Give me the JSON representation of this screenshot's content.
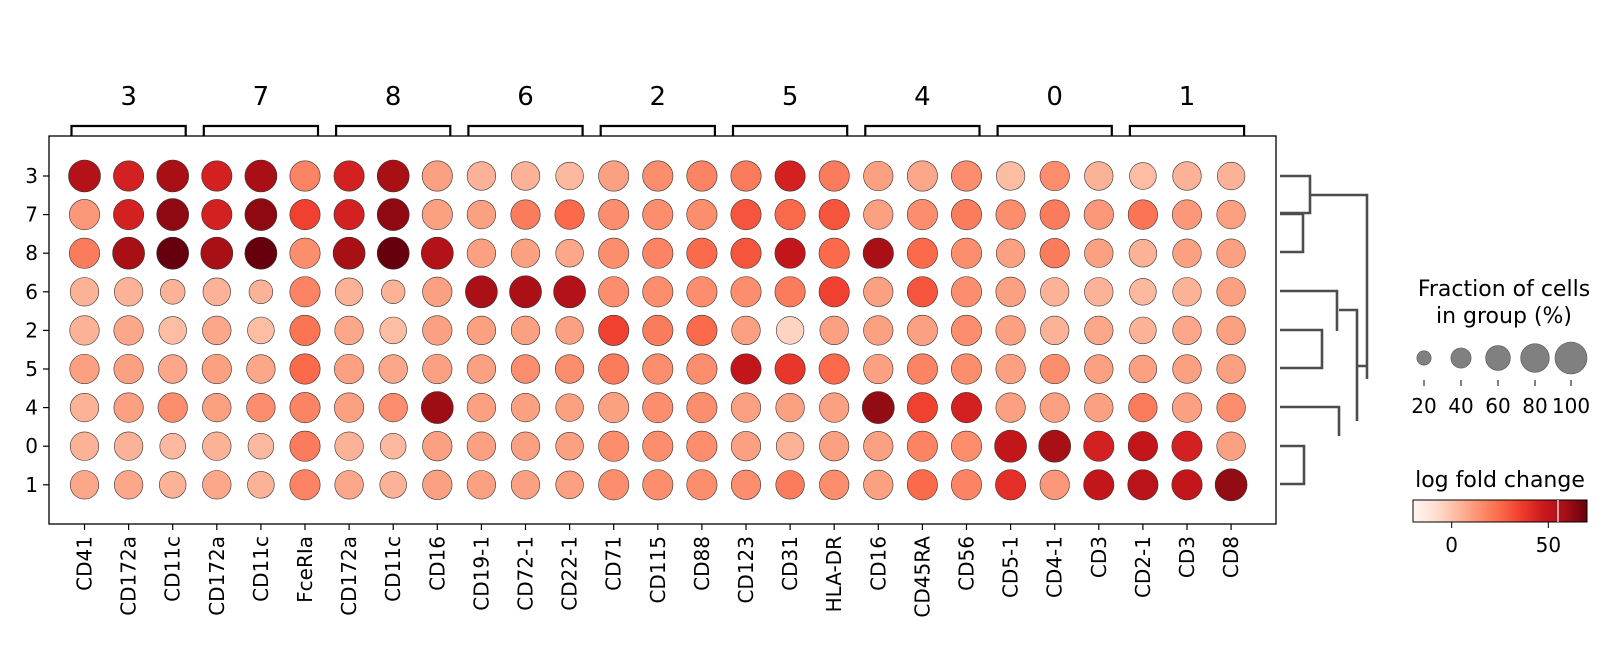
{
  "chart_data": {
    "type": "dotplot",
    "title": "",
    "rows": [
      "3",
      "7",
      "8",
      "6",
      "2",
      "5",
      "4",
      "0",
      "1"
    ],
    "genes": [
      "CD41",
      "CD172a",
      "CD11c",
      "CD172a",
      "CD11c",
      "FceRIa",
      "CD172a",
      "CD11c",
      "CD16",
      "CD19-1",
      "CD72-1",
      "CD22-1",
      "CD71",
      "CD115",
      "CD88",
      "CD123",
      "CD31",
      "HLA-DR",
      "CD16",
      "CD45RA",
      "CD56",
      "CD5-1",
      "CD4-1",
      "CD3",
      "CD2-1",
      "CD3",
      "CD8"
    ],
    "groups": [
      {
        "label": "3",
        "start": 0,
        "end": 2
      },
      {
        "label": "7",
        "start": 3,
        "end": 5
      },
      {
        "label": "8",
        "start": 6,
        "end": 8
      },
      {
        "label": "6",
        "start": 9,
        "end": 11
      },
      {
        "label": "2",
        "start": 12,
        "end": 14
      },
      {
        "label": "5",
        "start": 15,
        "end": 17
      },
      {
        "label": "4",
        "start": 18,
        "end": 20
      },
      {
        "label": "0",
        "start": 21,
        "end": 23
      },
      {
        "label": "1",
        "start": 24,
        "end": 26
      }
    ],
    "fraction_pct": [
      [
        100,
        90,
        100,
        90,
        100,
        90,
        90,
        100,
        90,
        80,
        80,
        75,
        90,
        90,
        90,
        90,
        90,
        90,
        85,
        90,
        90,
        80,
        85,
        80,
        70,
        80,
        75
      ],
      [
        90,
        90,
        100,
        90,
        100,
        90,
        90,
        100,
        90,
        80,
        85,
        85,
        90,
        90,
        90,
        90,
        90,
        90,
        85,
        90,
        90,
        85,
        85,
        85,
        85,
        85,
        80
      ],
      [
        90,
        100,
        100,
        100,
        100,
        90,
        100,
        100,
        100,
        80,
        80,
        75,
        90,
        90,
        90,
        90,
        90,
        90,
        90,
        90,
        90,
        80,
        85,
        80,
        75,
        80,
        80
      ],
      [
        80,
        80,
        60,
        75,
        55,
        90,
        75,
        55,
        85,
        100,
        100,
        100,
        90,
        90,
        90,
        90,
        90,
        90,
        85,
        90,
        90,
        85,
        80,
        80,
        70,
        80,
        80
      ],
      [
        85,
        85,
        75,
        80,
        70,
        90,
        80,
        70,
        85,
        80,
        80,
        75,
        90,
        90,
        90,
        80,
        75,
        80,
        85,
        90,
        90,
        85,
        80,
        80,
        70,
        80,
        80
      ],
      [
        85,
        85,
        80,
        85,
        80,
        90,
        85,
        80,
        85,
        80,
        80,
        80,
        90,
        90,
        90,
        90,
        90,
        90,
        85,
        90,
        90,
        85,
        85,
        80,
        75,
        80,
        80
      ],
      [
        80,
        85,
        85,
        80,
        80,
        90,
        85,
        80,
        100,
        80,
        80,
        75,
        90,
        90,
        90,
        85,
        80,
        85,
        100,
        90,
        90,
        85,
        85,
        80,
        80,
        85,
        80
      ],
      [
        80,
        80,
        65,
        80,
        65,
        90,
        80,
        65,
        85,
        80,
        80,
        75,
        90,
        90,
        90,
        85,
        75,
        85,
        85,
        90,
        90,
        100,
        100,
        90,
        85,
        90,
        80
      ],
      [
        80,
        80,
        70,
        80,
        70,
        90,
        80,
        70,
        85,
        80,
        80,
        75,
        90,
        90,
        90,
        85,
        80,
        85,
        85,
        90,
        90,
        90,
        85,
        90,
        90,
        90,
        100
      ]
    ],
    "log_fold_change": [
      [
        55,
        45,
        58,
        45,
        58,
        18,
        45,
        58,
        10,
        5,
        5,
        3,
        10,
        15,
        18,
        20,
        45,
        20,
        10,
        8,
        15,
        2,
        15,
        5,
        2,
        5,
        5
      ],
      [
        12,
        45,
        63,
        45,
        63,
        35,
        45,
        63,
        10,
        10,
        20,
        25,
        15,
        15,
        15,
        30,
        25,
        30,
        10,
        15,
        20,
        15,
        20,
        12,
        22,
        12,
        10
      ],
      [
        20,
        58,
        70,
        58,
        70,
        15,
        58,
        70,
        55,
        10,
        10,
        8,
        15,
        18,
        25,
        30,
        50,
        25,
        58,
        25,
        15,
        10,
        20,
        10,
        5,
        10,
        10
      ],
      [
        5,
        5,
        5,
        5,
        5,
        18,
        5,
        5,
        10,
        57,
        57,
        55,
        15,
        15,
        15,
        15,
        20,
        35,
        10,
        30,
        15,
        10,
        5,
        5,
        3,
        5,
        10
      ],
      [
        5,
        8,
        2,
        8,
        2,
        22,
        8,
        2,
        10,
        10,
        10,
        10,
        35,
        20,
        25,
        10,
        -5,
        10,
        10,
        10,
        15,
        10,
        5,
        8,
        5,
        8,
        10
      ],
      [
        10,
        10,
        8,
        10,
        8,
        25,
        10,
        8,
        10,
        10,
        15,
        15,
        20,
        15,
        15,
        50,
        38,
        25,
        10,
        18,
        15,
        10,
        15,
        10,
        10,
        10,
        10
      ],
      [
        5,
        10,
        15,
        10,
        15,
        18,
        10,
        15,
        60,
        10,
        10,
        10,
        10,
        15,
        15,
        10,
        10,
        10,
        62,
        35,
        45,
        10,
        10,
        10,
        20,
        10,
        15
      ],
      [
        5,
        5,
        3,
        5,
        3,
        20,
        5,
        3,
        10,
        10,
        10,
        10,
        15,
        15,
        15,
        10,
        5,
        10,
        10,
        18,
        15,
        50,
        58,
        45,
        50,
        45,
        10
      ],
      [
        8,
        8,
        5,
        8,
        5,
        18,
        8,
        5,
        10,
        10,
        10,
        10,
        15,
        15,
        15,
        15,
        20,
        15,
        10,
        25,
        18,
        40,
        12,
        50,
        53,
        50,
        62
      ]
    ],
    "dendrogram": "hierarchical clustering of rows (right side)",
    "size_legend": {
      "title": "Fraction of cells\nin group (%)",
      "values": [
        20,
        40,
        60,
        80,
        100
      ],
      "tick_labels": [
        "20",
        "40",
        "60",
        "80",
        "100"
      ]
    },
    "color_legend": {
      "title": "log fold change",
      "range": [
        -20,
        70
      ],
      "ticks": [
        0,
        50
      ],
      "tick_labels": [
        "0",
        "50"
      ],
      "colormap": "Reds"
    }
  }
}
